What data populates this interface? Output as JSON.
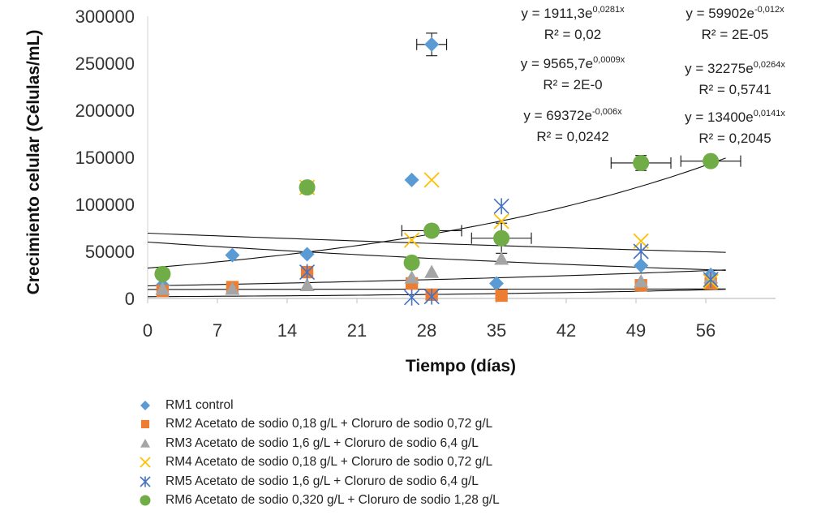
{
  "chart_data": {
    "type": "scatter",
    "xlabel": "Tiempo (días)",
    "ylabel": "Crecimiento celular (Células/mL)",
    "xlim": [
      0,
      63
    ],
    "ylim": [
      0,
      300000
    ],
    "xticks": [
      0,
      7,
      14,
      21,
      28,
      35,
      42,
      49,
      56
    ],
    "xtick_labels": [
      "0",
      "7",
      "14",
      "21",
      "28",
      "35",
      "42",
      "49",
      "56"
    ],
    "yticks": [
      0,
      50000,
      100000,
      150000,
      200000,
      250000,
      300000
    ],
    "ytick_labels": [
      "0",
      "50000",
      "100000",
      "150000",
      "200000",
      "250000",
      "300000"
    ],
    "series": [
      {
        "name": "RM1 control",
        "marker": "diamond",
        "color": "#5B9BD5",
        "points": [
          [
            1.5,
            14000
          ],
          [
            8.5,
            46000
          ],
          [
            16,
            47000
          ],
          [
            26.5,
            126000
          ],
          [
            28.5,
            270000
          ],
          [
            35,
            16000
          ],
          [
            49.5,
            35000
          ],
          [
            56.5,
            25000
          ]
        ],
        "xerr": [
          null,
          null,
          null,
          null,
          1.5,
          null,
          null,
          null
        ],
        "yerr": [
          null,
          null,
          null,
          null,
          12000,
          null,
          null,
          null
        ]
      },
      {
        "name": "RM2 Acetato de sodio 0,18 g/L + Cloruro de sodio 0,72 g/L",
        "marker": "square",
        "color": "#ED7D31",
        "points": [
          [
            1.5,
            8000
          ],
          [
            8.5,
            12000
          ],
          [
            16,
            28000
          ],
          [
            26.5,
            16000
          ],
          [
            28.5,
            4000
          ],
          [
            35.5,
            3000
          ],
          [
            49.5,
            14000
          ],
          [
            56.5,
            16000
          ]
        ]
      },
      {
        "name": "RM3 Acetato de sodio 1,6 g/L + Cloruro de sodio 6,4 g/L",
        "marker": "triangle",
        "color": "#A5A5A5",
        "points": [
          [
            1.5,
            10000
          ],
          [
            8.5,
            10000
          ],
          [
            16,
            14000
          ],
          [
            26.5,
            22000
          ],
          [
            28.5,
            28000
          ],
          [
            35.5,
            42000
          ],
          [
            49.5,
            18000
          ],
          [
            56.5,
            22000
          ]
        ]
      },
      {
        "name": "RM4 Acetato de sodio 0,18 g/L + Cloruro de sodio 0,72 g/L",
        "marker": "x",
        "color": "#FFC000",
        "points": [
          [
            16,
            118000
          ],
          [
            26.5,
            62000
          ],
          [
            28.5,
            126000
          ],
          [
            35.5,
            82000
          ],
          [
            49.5,
            61000
          ],
          [
            56.5,
            18000
          ]
        ]
      },
      {
        "name": "RM5 Acetato de sodio 1,6 g/L + Cloruro de sodio 6,4 g/L",
        "marker": "asterisk",
        "color": "#4472C4",
        "points": [
          [
            16,
            28000
          ],
          [
            26.5,
            1000
          ],
          [
            28.5,
            2000
          ],
          [
            35.5,
            98000
          ],
          [
            49.5,
            50000
          ],
          [
            56.5,
            20000
          ]
        ]
      },
      {
        "name": "RM6 Acetato de sodio 0,320 g/L + Cloruro de sodio 1,28 g/L",
        "marker": "circle",
        "color": "#70AD47",
        "points": [
          [
            1.5,
            26000
          ],
          [
            16,
            118000
          ],
          [
            26.5,
            38000
          ],
          [
            28.5,
            72000
          ],
          [
            35.5,
            64000
          ],
          [
            49.5,
            144000
          ],
          [
            56.5,
            146000
          ]
        ],
        "xerr": [
          null,
          null,
          null,
          3,
          3,
          3,
          3
        ],
        "yerr": [
          null,
          3000,
          null,
          6000,
          16000,
          8000,
          5000
        ]
      }
    ],
    "trendlines": [
      {
        "a": 69372,
        "b": -0.006,
        "x_range": [
          0,
          58
        ]
      },
      {
        "a": 59902,
        "b": -0.012,
        "x_range": [
          0,
          58
        ]
      },
      {
        "a": 1911.3,
        "b": 0.0281,
        "x_range": [
          0,
          58
        ]
      },
      {
        "a": 9565.7,
        "b": 0.0009,
        "x_range": [
          0,
          58
        ]
      },
      {
        "a": 13400,
        "b": 0.0141,
        "x_range": [
          0,
          58
        ]
      },
      {
        "a": 32275,
        "b": 0.0264,
        "x_range": [
          0,
          58
        ]
      }
    ],
    "equations": [
      {
        "base": "y = 1911,3e",
        "exp": "0,0281x",
        "r2": "R² = 0,02"
      },
      {
        "base": "y = 59902e",
        "exp": "-0,012x",
        "r2": "R² = 2E-05"
      },
      {
        "base": "y = 9565,7e",
        "exp": "0,0009x",
        "r2": "R² = 2E-0"
      },
      {
        "base": "y = 32275e",
        "exp": "0,0264x",
        "r2": "R² = 0,5741"
      },
      {
        "base": "y = 69372e",
        "exp": "-0,006x",
        "r2": "R² = 0,0242"
      },
      {
        "base": "y = 13400e",
        "exp": "0,0141x",
        "r2": "R² = 0,2045"
      }
    ],
    "grid": false,
    "legend_position": "bottom"
  }
}
